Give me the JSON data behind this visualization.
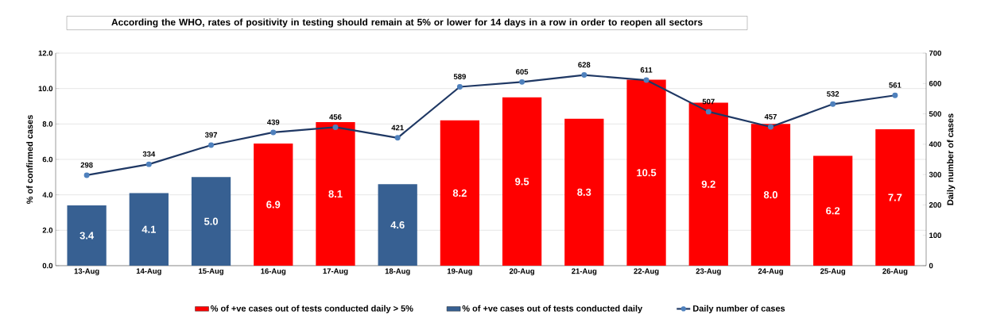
{
  "chart_data": {
    "type": "bar",
    "title": "According the WHO, rates of positivity in testing should remain at 5%  or lower for 14 days in a row in order to reopen all sectors",
    "ylabel": "% of confirmed cases",
    "y2label": "Daily number of cases",
    "categories": [
      "13-Aug",
      "14-Aug",
      "15-Aug",
      "16-Aug",
      "17-Aug",
      "18-Aug",
      "19-Aug",
      "20-Aug",
      "21-Aug",
      "22-Aug",
      "23-Aug",
      "24-Aug",
      "25-Aug",
      "26-Aug"
    ],
    "series": [
      {
        "name": "% of +ve cases out of tests conducted daily > 5%",
        "color": "#ff0000",
        "values": [
          null,
          null,
          null,
          6.9,
          8.1,
          null,
          8.2,
          9.5,
          8.3,
          10.5,
          9.2,
          8.0,
          6.2,
          7.7
        ],
        "value_labels": [
          null,
          null,
          null,
          "6.9",
          "8.1",
          null,
          "8.2",
          "9.5",
          "8.3",
          "10.5",
          "9.2",
          "8.0",
          "6.2",
          "7.7"
        ]
      },
      {
        "name": "% of +ve cases out of tests conducted daily",
        "color": "#376092",
        "values": [
          3.4,
          4.1,
          5.0,
          null,
          null,
          4.6,
          null,
          null,
          null,
          null,
          null,
          null,
          null,
          null
        ],
        "value_labels": [
          "3.4",
          "4.1",
          "5.0",
          null,
          null,
          "4.6",
          null,
          null,
          null,
          null,
          null,
          null,
          null,
          null
        ]
      },
      {
        "name": "Daily  number of cases",
        "type": "line",
        "axis": "y2",
        "marker": "circle",
        "color": "#1f3864",
        "values": [
          298,
          334,
          397,
          439,
          456,
          421,
          589,
          605,
          628,
          611,
          507,
          457,
          532,
          561
        ],
        "value_labels": [
          "298",
          "334",
          "397",
          "439",
          "456",
          "421",
          "589",
          "605",
          "628",
          "611",
          "507",
          "457",
          "532",
          "561"
        ]
      }
    ],
    "ylim": [
      0,
      12
    ],
    "yticks": [
      {
        "value": 0,
        "label": "0.0"
      },
      {
        "value": 2,
        "label": "2.0"
      },
      {
        "value": 4,
        "label": "4.0"
      },
      {
        "value": 6,
        "label": "6.0"
      },
      {
        "value": 8,
        "label": "8.0"
      },
      {
        "value": 10,
        "label": "10.0"
      },
      {
        "value": 12,
        "label": "12.0"
      }
    ],
    "y2lim": [
      0,
      700
    ],
    "y2ticks": [
      0,
      100,
      200,
      300,
      400,
      500,
      600,
      700
    ],
    "grid": "y",
    "legend": "bottom"
  }
}
